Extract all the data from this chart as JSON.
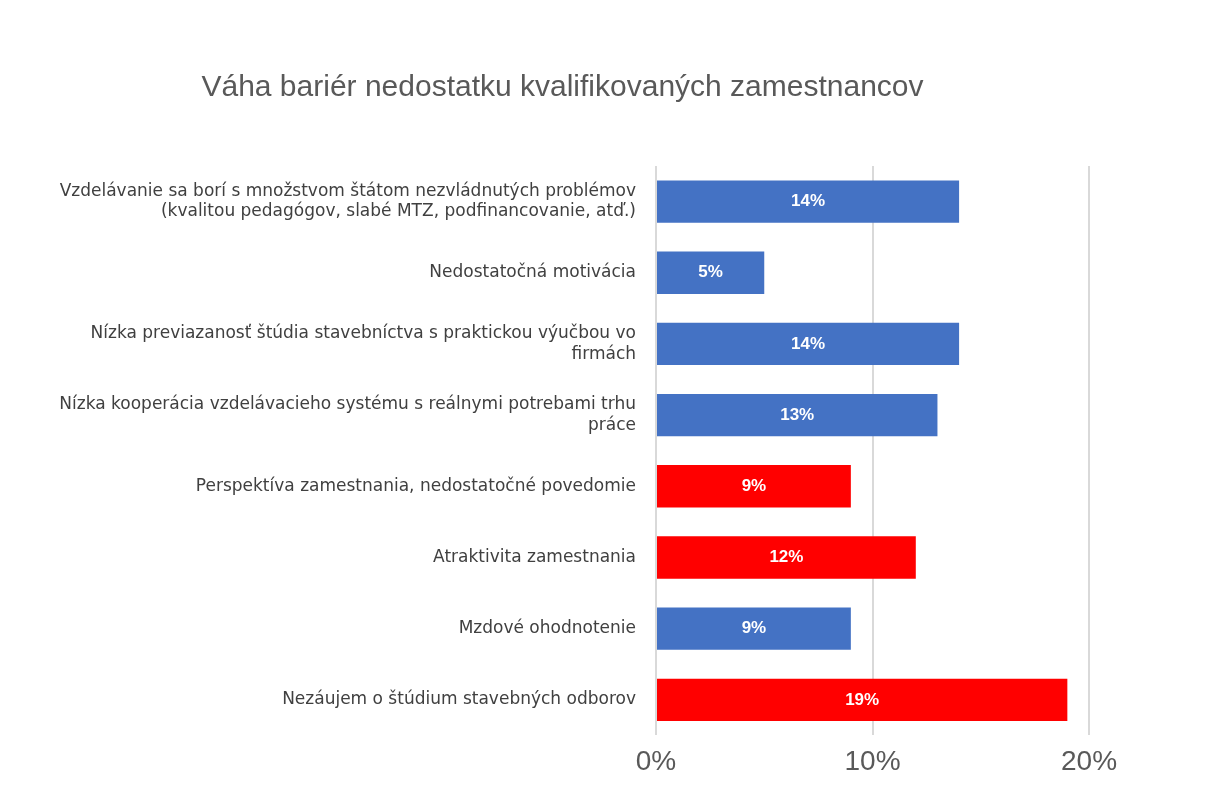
{
  "chart_data": {
    "type": "bar",
    "orientation": "horizontal",
    "title": "Váha bariér nedostatku kvalifikovaných zamestnancov",
    "categories": [
      "Vzdelávanie sa borí s množstvom štátom nezvládnutých problémov (kvalitou pedagógov, slabé MTZ, podfinancovanie, atď.)",
      "Nedostatočná motivácia",
      "Nízka previazanosť štúdia stavebníctva s praktickou výučbou vo firmách",
      "Nízka kooperácia vzdelávacieho systému s reálnymi potrebami trhu práce",
      "Perspektíva zamestnania, nedostatočné povedomie",
      "Atraktivita zamestnania",
      "Mzdové ohodnotenie",
      "Nezáujem o štúdium stavebných odborov"
    ],
    "values": [
      14,
      5,
      14,
      13,
      9,
      12,
      9,
      19
    ],
    "value_labels": [
      "14%",
      "5%",
      "14%",
      "13%",
      "9%",
      "12%",
      "9%",
      "19%"
    ],
    "colors": [
      "#4472c4",
      "#4472c4",
      "#4472c4",
      "#4472c4",
      "#ff0000",
      "#ff0000",
      "#4472c4",
      "#ff0000"
    ],
    "xlim": [
      0,
      20
    ],
    "xticks": [
      {
        "value": 0,
        "label": "0%"
      },
      {
        "value": 10,
        "label": "10%"
      },
      {
        "value": 20,
        "label": "20%"
      }
    ],
    "grid": "x",
    "legend": false
  }
}
